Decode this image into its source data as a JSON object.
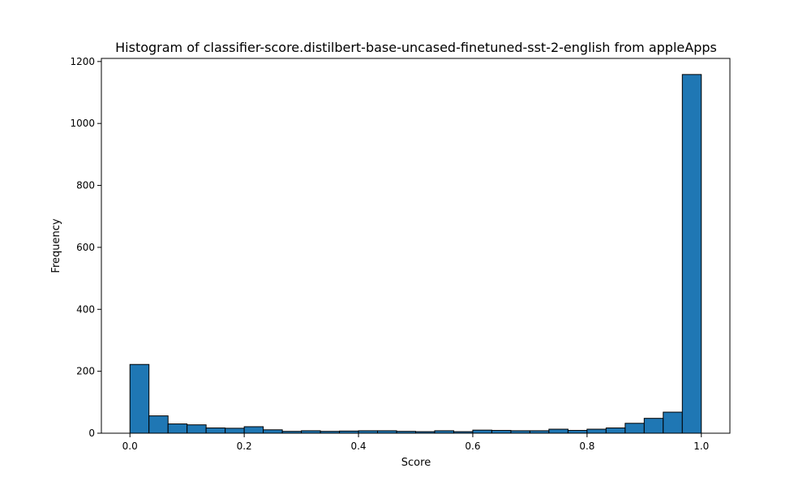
{
  "chart_data": {
    "type": "bar",
    "title": "Histogram of classifier-score.distilbert-base-uncased-finetuned-sst-2-english from appleApps",
    "xlabel": "Score",
    "ylabel": "Frequency",
    "xlim": [
      -0.05,
      1.05
    ],
    "ylim": [
      0,
      1210
    ],
    "xticks": [
      0.0,
      0.2,
      0.4,
      0.6,
      0.8,
      1.0
    ],
    "xtick_labels": [
      "0.0",
      "0.2",
      "0.4",
      "0.6",
      "0.8",
      "1.0"
    ],
    "yticks": [
      0,
      200,
      400,
      600,
      800,
      1000,
      1200
    ],
    "ytick_labels": [
      "0",
      "200",
      "400",
      "600",
      "800",
      "1000",
      "1200"
    ],
    "bin_edges": [
      0.0,
      0.0333,
      0.0667,
      0.1,
      0.1333,
      0.1667,
      0.2,
      0.2333,
      0.2667,
      0.3,
      0.3333,
      0.3667,
      0.4,
      0.4333,
      0.4667,
      0.5,
      0.5333,
      0.5667,
      0.6,
      0.6333,
      0.6667,
      0.7,
      0.7333,
      0.7667,
      0.8,
      0.8333,
      0.8667,
      0.9,
      0.9333,
      0.9667,
      1.0
    ],
    "values": [
      222,
      56,
      30,
      27,
      17,
      16,
      21,
      11,
      6,
      8,
      6,
      7,
      8,
      8,
      6,
      5,
      8,
      5,
      10,
      9,
      8,
      8,
      13,
      9,
      13,
      17,
      32,
      48,
      68,
      1158
    ],
    "bar_color": "#1f77b4",
    "edge_color": "#000000",
    "grid": false,
    "legend": "none"
  }
}
